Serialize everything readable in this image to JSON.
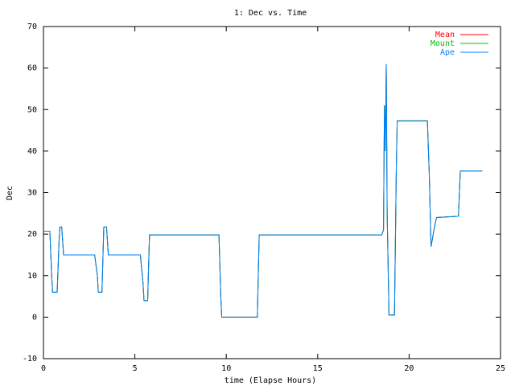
{
  "chart_data": {
    "type": "line",
    "title": "1: Dec vs. Time",
    "x_label": "time (Elapse Hours)",
    "y_label": "Dec",
    "x": [
      0.0,
      0.35,
      0.45,
      0.5,
      0.75,
      0.85,
      0.9,
      1.0,
      1.1,
      2.8,
      2.95,
      3.0,
      3.2,
      3.3,
      3.45,
      3.55,
      5.3,
      5.45,
      5.5,
      5.7,
      5.75,
      5.8,
      9.6,
      9.7,
      9.75,
      11.7,
      11.8,
      18.5,
      18.6,
      18.65,
      18.7,
      18.75,
      18.8,
      18.9,
      19.2,
      19.3,
      19.35,
      21.0,
      21.1,
      21.2,
      21.4,
      21.5,
      22.7,
      22.8,
      24.0
    ],
    "series": [
      {
        "name": "Mean",
        "color": "#ff0000",
        "values": [
          20.7,
          20.7,
          10,
          6,
          6,
          18,
          21.7,
          21.7,
          15,
          15,
          10,
          6,
          6,
          21.7,
          21.7,
          15,
          15,
          8,
          4,
          4,
          12,
          19.8,
          19.8,
          5,
          0,
          0,
          19.8,
          19.8,
          21,
          51,
          40,
          61,
          25,
          0.5,
          0.5,
          36,
          47.3,
          47.3,
          35,
          17,
          22,
          24,
          24.3,
          35.2,
          35.2
        ]
      },
      {
        "name": "Mount",
        "color": "#00c000",
        "values": [
          20.7,
          20.7,
          10,
          6,
          6,
          18,
          21.7,
          21.7,
          15,
          15,
          10,
          6,
          6,
          21.7,
          21.7,
          15,
          15,
          8,
          4,
          4,
          12,
          19.8,
          19.8,
          5,
          0,
          0,
          19.8,
          19.8,
          21,
          51,
          40,
          61,
          25,
          0.5,
          0.5,
          36,
          47.3,
          47.3,
          35,
          17,
          22,
          24,
          24.3,
          35.2,
          35.2
        ]
      },
      {
        "name": "Ape",
        "color": "#0080ff",
        "values": [
          20.7,
          20.7,
          10,
          6,
          6,
          18,
          21.7,
          21.7,
          15,
          15,
          10,
          6,
          6,
          21.7,
          21.7,
          15,
          15,
          8,
          4,
          4,
          12,
          19.8,
          19.8,
          5,
          0,
          0,
          19.8,
          19.8,
          21,
          51,
          40,
          61,
          25,
          0.5,
          0.5,
          36,
          47.3,
          47.3,
          35,
          17,
          22,
          24,
          24.3,
          35.2,
          35.2
        ]
      }
    ],
    "xlim": [
      0,
      25
    ],
    "xticks": [
      0,
      5,
      10,
      15,
      20,
      25
    ],
    "ylim": [
      -10,
      70
    ],
    "yticks": [
      -10,
      0,
      10,
      20,
      30,
      40,
      50,
      60,
      70
    ],
    "legend": "top-right"
  }
}
